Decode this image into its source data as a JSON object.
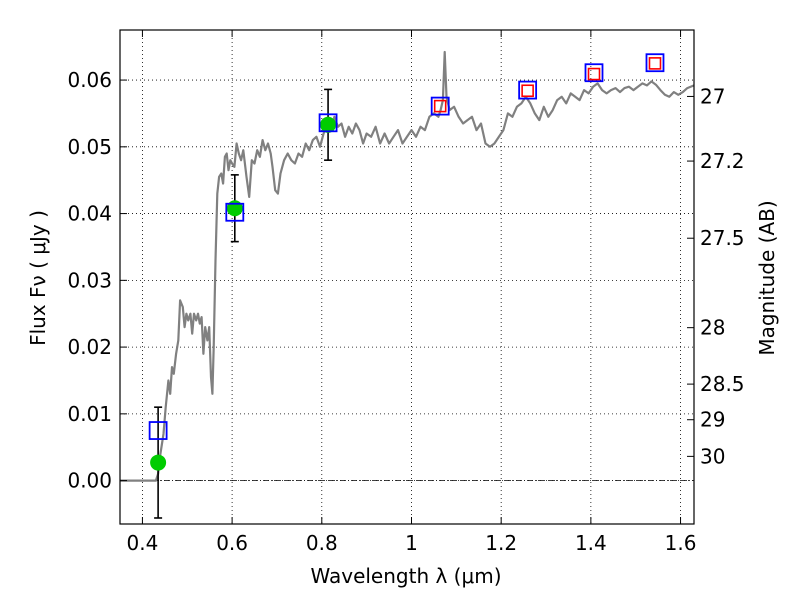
{
  "chart_data": {
    "type": "scatter",
    "title": "",
    "xlabel": "Wavelength  λ (μm)",
    "ylabel": "Flux  Fν  ( μJy )",
    "y2label": "Magnitude (AB)",
    "xlim": [
      0.35,
      1.63
    ],
    "ylim": [
      -0.0065,
      0.0675
    ],
    "grid": true,
    "x_ticks": [
      {
        "value": 0.4,
        "label": "0.4"
      },
      {
        "value": 0.6,
        "label": "0.6"
      },
      {
        "value": 0.8,
        "label": "0.8"
      },
      {
        "value": 1.0,
        "label": "1"
      },
      {
        "value": 1.2,
        "label": "1.2"
      },
      {
        "value": 1.4,
        "label": "1.4"
      },
      {
        "value": 1.6,
        "label": "1.6"
      }
    ],
    "y_ticks": [
      {
        "value": 0.0,
        "label": "0.00"
      },
      {
        "value": 0.01,
        "label": "0.01"
      },
      {
        "value": 0.02,
        "label": "0.02"
      },
      {
        "value": 0.03,
        "label": "0.03"
      },
      {
        "value": 0.04,
        "label": "0.04"
      },
      {
        "value": 0.05,
        "label": "0.05"
      },
      {
        "value": 0.06,
        "label": "0.06"
      }
    ],
    "y2_ticks": [
      {
        "value": 27.0,
        "label": "27"
      },
      {
        "value": 27.2,
        "label": "27.2"
      },
      {
        "value": 27.5,
        "label": "27.5"
      },
      {
        "value": 28.0,
        "label": "28"
      },
      {
        "value": 28.5,
        "label": "28.5"
      },
      {
        "value": 29.0,
        "label": "29"
      },
      {
        "value": 30.0,
        "label": "30"
      }
    ],
    "zero_line": 0.0,
    "colors": {
      "model": "#808080",
      "observed": "#00cc00",
      "model_photometry": "#0000ff",
      "predicted": "#ff0000",
      "errorbar": "#000000"
    },
    "series": [
      {
        "kind": "line",
        "color": "#808080",
        "points": [
          [
            0.35,
            0.0
          ],
          [
            0.43,
            0.0
          ],
          [
            0.435,
            0.001
          ],
          [
            0.44,
            0.004
          ],
          [
            0.447,
            0.007
          ],
          [
            0.452,
            0.011
          ],
          [
            0.458,
            0.015
          ],
          [
            0.462,
            0.013
          ],
          [
            0.466,
            0.017
          ],
          [
            0.47,
            0.016
          ],
          [
            0.475,
            0.019
          ],
          [
            0.48,
            0.021
          ],
          [
            0.484,
            0.027
          ],
          [
            0.49,
            0.026
          ],
          [
            0.494,
            0.023
          ],
          [
            0.498,
            0.025
          ],
          [
            0.502,
            0.024
          ],
          [
            0.507,
            0.025
          ],
          [
            0.511,
            0.022
          ],
          [
            0.515,
            0.025
          ],
          [
            0.52,
            0.024
          ],
          [
            0.524,
            0.025
          ],
          [
            0.528,
            0.0235
          ],
          [
            0.532,
            0.0245
          ],
          [
            0.536,
            0.019
          ],
          [
            0.54,
            0.023
          ],
          [
            0.545,
            0.021
          ],
          [
            0.549,
            0.023
          ],
          [
            0.553,
            0.0155
          ],
          [
            0.556,
            0.013
          ],
          [
            0.559,
            0.02
          ],
          [
            0.563,
            0.033
          ],
          [
            0.567,
            0.043
          ],
          [
            0.571,
            0.0455
          ],
          [
            0.576,
            0.046
          ],
          [
            0.58,
            0.0445
          ],
          [
            0.584,
            0.0485
          ],
          [
            0.588,
            0.049
          ],
          [
            0.592,
            0.0465
          ],
          [
            0.596,
            0.048
          ],
          [
            0.6,
            0.0475
          ],
          [
            0.605,
            0.047
          ],
          [
            0.61,
            0.0505
          ],
          [
            0.615,
            0.049
          ],
          [
            0.62,
            0.048
          ],
          [
            0.625,
            0.0495
          ],
          [
            0.632,
            0.0455
          ],
          [
            0.638,
            0.0425
          ],
          [
            0.644,
            0.048
          ],
          [
            0.65,
            0.0475
          ],
          [
            0.656,
            0.0495
          ],
          [
            0.662,
            0.0485
          ],
          [
            0.668,
            0.051
          ],
          [
            0.674,
            0.0495
          ],
          [
            0.68,
            0.0505
          ],
          [
            0.686,
            0.049
          ],
          [
            0.69,
            0.047
          ],
          [
            0.696,
            0.0435
          ],
          [
            0.702,
            0.043
          ],
          [
            0.708,
            0.046
          ],
          [
            0.716,
            0.048
          ],
          [
            0.724,
            0.049
          ],
          [
            0.732,
            0.048
          ],
          [
            0.74,
            0.0475
          ],
          [
            0.748,
            0.049
          ],
          [
            0.756,
            0.0485
          ],
          [
            0.764,
            0.0505
          ],
          [
            0.772,
            0.0495
          ],
          [
            0.78,
            0.051
          ],
          [
            0.788,
            0.0515
          ],
          [
            0.796,
            0.05
          ],
          [
            0.804,
            0.052
          ],
          [
            0.812,
            0.0535
          ],
          [
            0.82,
            0.0525
          ],
          [
            0.828,
            0.0545
          ],
          [
            0.836,
            0.053
          ],
          [
            0.844,
            0.0535
          ],
          [
            0.852,
            0.0515
          ],
          [
            0.86,
            0.053
          ],
          [
            0.868,
            0.052
          ],
          [
            0.876,
            0.0535
          ],
          [
            0.884,
            0.0525
          ],
          [
            0.892,
            0.0505
          ],
          [
            0.9,
            0.052
          ],
          [
            0.91,
            0.0515
          ],
          [
            0.92,
            0.053
          ],
          [
            0.93,
            0.0505
          ],
          [
            0.94,
            0.052
          ],
          [
            0.95,
            0.0505
          ],
          [
            0.96,
            0.0515
          ],
          [
            0.97,
            0.0525
          ],
          [
            0.98,
            0.0505
          ],
          [
            0.99,
            0.0515
          ],
          [
            1.0,
            0.0525
          ],
          [
            1.01,
            0.0515
          ],
          [
            1.02,
            0.053
          ],
          [
            1.03,
            0.0525
          ],
          [
            1.04,
            0.0545
          ],
          [
            1.05,
            0.055
          ],
          [
            1.06,
            0.0545
          ],
          [
            1.065,
            0.0555
          ],
          [
            1.07,
            0.057
          ],
          [
            1.074,
            0.0642
          ],
          [
            1.078,
            0.0575
          ],
          [
            1.085,
            0.0555
          ],
          [
            1.095,
            0.056
          ],
          [
            1.105,
            0.0545
          ],
          [
            1.115,
            0.0535
          ],
          [
            1.125,
            0.054
          ],
          [
            1.135,
            0.0545
          ],
          [
            1.145,
            0.0525
          ],
          [
            1.155,
            0.0535
          ],
          [
            1.165,
            0.0505
          ],
          [
            1.175,
            0.05
          ],
          [
            1.185,
            0.0505
          ],
          [
            1.195,
            0.0515
          ],
          [
            1.205,
            0.0525
          ],
          [
            1.215,
            0.055
          ],
          [
            1.225,
            0.0545
          ],
          [
            1.235,
            0.056
          ],
          [
            1.245,
            0.0565
          ],
          [
            1.255,
            0.0575
          ],
          [
            1.265,
            0.0565
          ],
          [
            1.275,
            0.055
          ],
          [
            1.285,
            0.054
          ],
          [
            1.295,
            0.056
          ],
          [
            1.305,
            0.0545
          ],
          [
            1.315,
            0.0555
          ],
          [
            1.325,
            0.057
          ],
          [
            1.335,
            0.0575
          ],
          [
            1.345,
            0.0565
          ],
          [
            1.355,
            0.058
          ],
          [
            1.365,
            0.0575
          ],
          [
            1.375,
            0.057
          ],
          [
            1.385,
            0.0585
          ],
          [
            1.395,
            0.058
          ],
          [
            1.405,
            0.059
          ],
          [
            1.415,
            0.0595
          ],
          [
            1.425,
            0.0585
          ],
          [
            1.435,
            0.058
          ],
          [
            1.445,
            0.0585
          ],
          [
            1.455,
            0.0588
          ],
          [
            1.465,
            0.0582
          ],
          [
            1.475,
            0.0588
          ],
          [
            1.485,
            0.059
          ],
          [
            1.495,
            0.0585
          ],
          [
            1.505,
            0.059
          ],
          [
            1.515,
            0.0595
          ],
          [
            1.525,
            0.0592
          ],
          [
            1.535,
            0.0598
          ],
          [
            1.545,
            0.0593
          ],
          [
            1.555,
            0.0585
          ],
          [
            1.565,
            0.0578
          ],
          [
            1.575,
            0.0575
          ],
          [
            1.585,
            0.0582
          ],
          [
            1.595,
            0.0578
          ],
          [
            1.605,
            0.0582
          ],
          [
            1.615,
            0.0588
          ],
          [
            1.63,
            0.0592
          ]
        ]
      },
      {
        "kind": "points",
        "marker": "circle",
        "color": "#00cc00",
        "points": [
          {
            "x": 0.435,
            "y": 0.0027,
            "err": 0.0083
          },
          {
            "x": 0.606,
            "y": 0.0408,
            "err": 0.005
          },
          {
            "x": 0.814,
            "y": 0.0533,
            "err": 0.0053
          }
        ]
      },
      {
        "kind": "points",
        "marker": "open-square",
        "color": "#0000ff",
        "points": [
          {
            "x": 0.435,
            "y": 0.0075
          },
          {
            "x": 0.606,
            "y": 0.0402
          },
          {
            "x": 0.814,
            "y": 0.0536
          },
          {
            "x": 1.064,
            "y": 0.0561
          },
          {
            "x": 1.259,
            "y": 0.0585
          },
          {
            "x": 1.407,
            "y": 0.0611
          },
          {
            "x": 1.543,
            "y": 0.0626
          }
        ]
      },
      {
        "kind": "points",
        "marker": "open-square-small",
        "color": "#ff0000",
        "points": [
          {
            "x": 1.064,
            "y": 0.0561
          },
          {
            "x": 1.259,
            "y": 0.0584
          },
          {
            "x": 1.407,
            "y": 0.0609
          },
          {
            "x": 1.543,
            "y": 0.0625
          }
        ]
      }
    ]
  }
}
